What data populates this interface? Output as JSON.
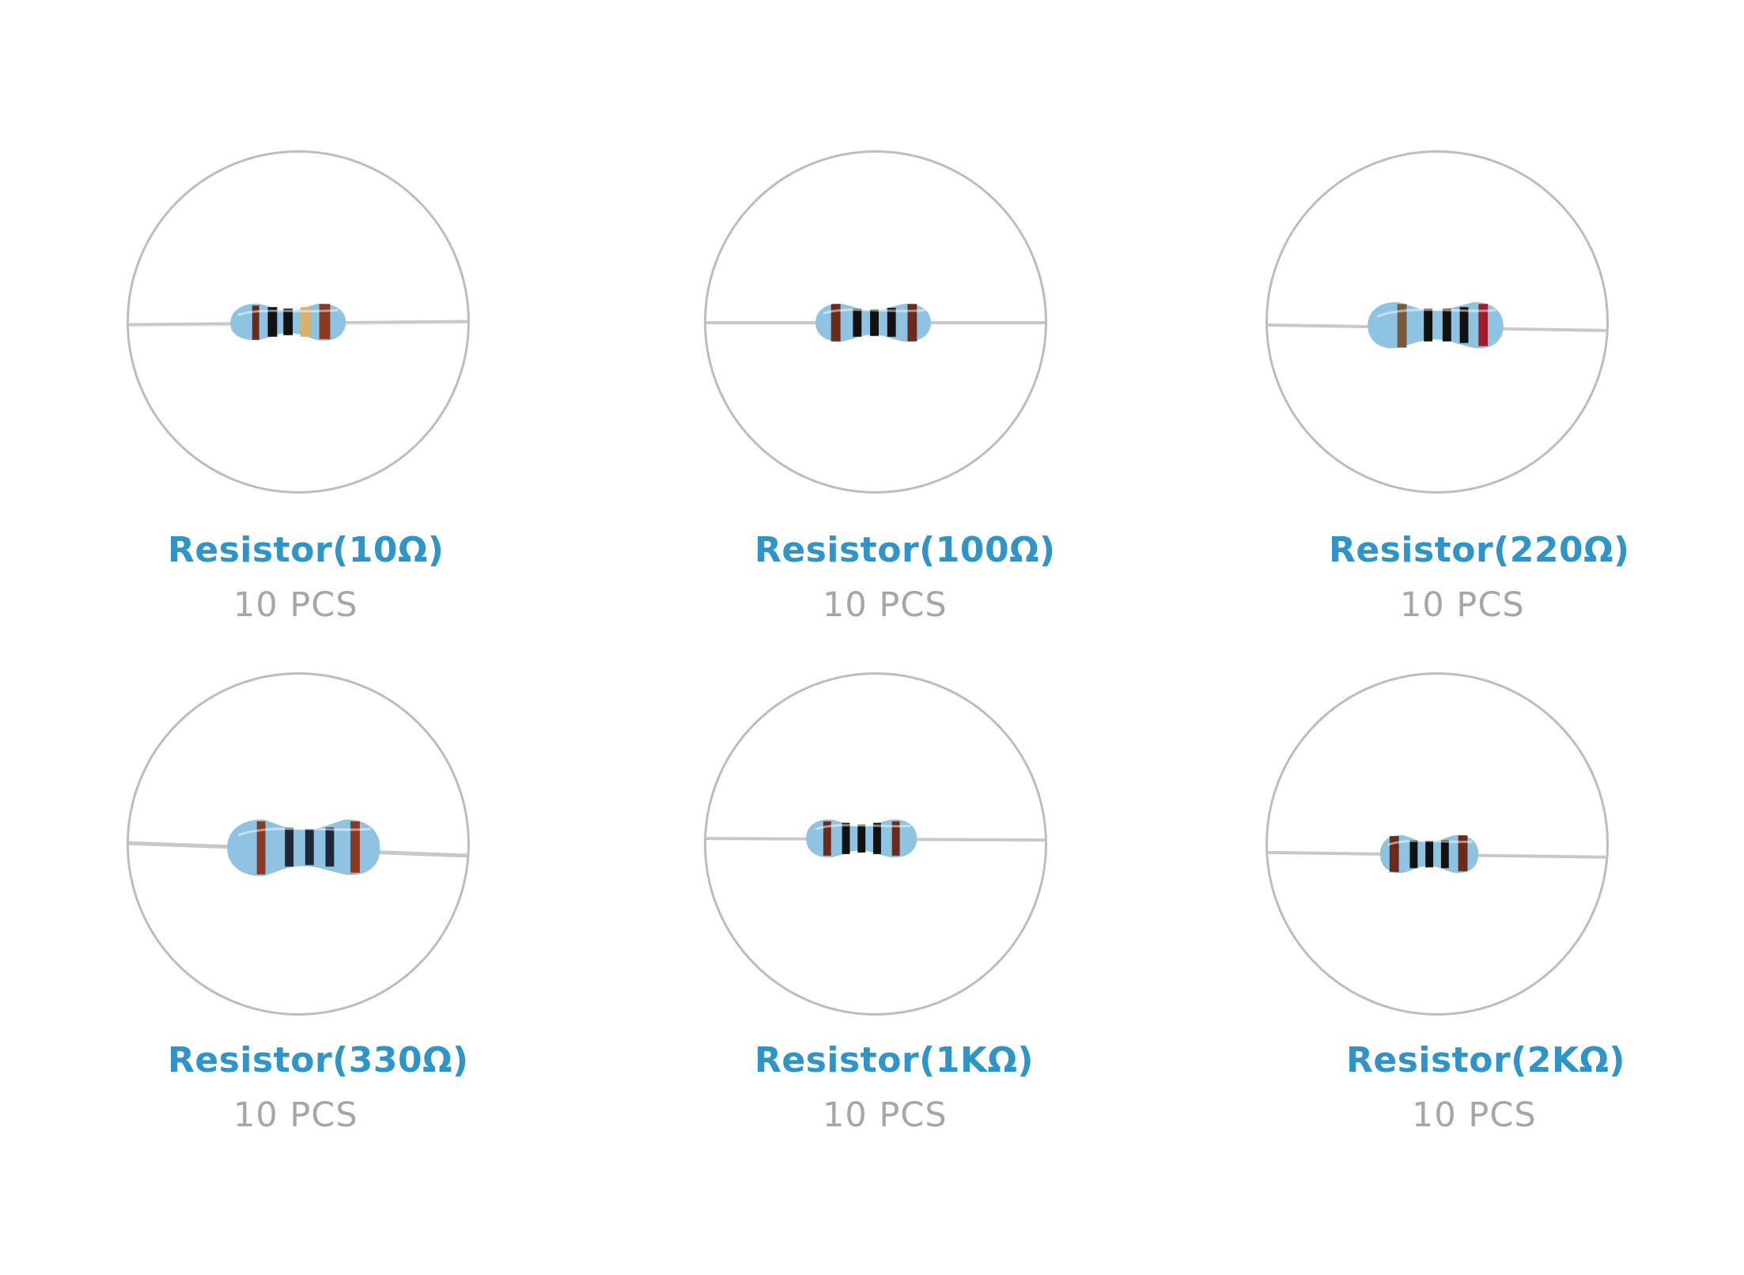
{
  "items": [
    {
      "title": "Resistor(10Ω)",
      "qty": "10 PCS",
      "bands": [
        "#6a2a1c",
        "#111111",
        "#111111",
        "#d8b070",
        "#8a3a22"
      ]
    },
    {
      "title": "Resistor(100Ω)",
      "qty": "10 PCS",
      "bands": [
        "#6a2a1c",
        "#111111",
        "#111111",
        "#111111",
        "#6a2a1c"
      ]
    },
    {
      "title": "Resistor(220Ω)",
      "qty": "10 PCS",
      "bands": [
        "#7a5a3c",
        "#111111",
        "#111111",
        "#111111",
        "#a01c2c"
      ]
    },
    {
      "title": "Resistor(330Ω)",
      "qty": "10 PCS",
      "bands": [
        "#8a3a22",
        "#1c2838",
        "#1c2838",
        "#1c2838",
        "#8a3a22"
      ]
    },
    {
      "title": "Resistor(1KΩ)",
      "qty": "10 PCS",
      "bands": [
        "#6a2a1c",
        "#111111",
        "#111111",
        "#111111",
        "#6a2a1c"
      ]
    },
    {
      "title": "Resistor(2KΩ)",
      "qty": "10 PCS",
      "bands": [
        "#6a2a1c",
        "#111111",
        "#111111",
        "#111111",
        "#6a2a1c"
      ]
    }
  ],
  "colors": {
    "title": "#2f95c9",
    "qty": "#a6a6a6",
    "circle": "#bdbdbd",
    "body": "#8ec3e2"
  }
}
